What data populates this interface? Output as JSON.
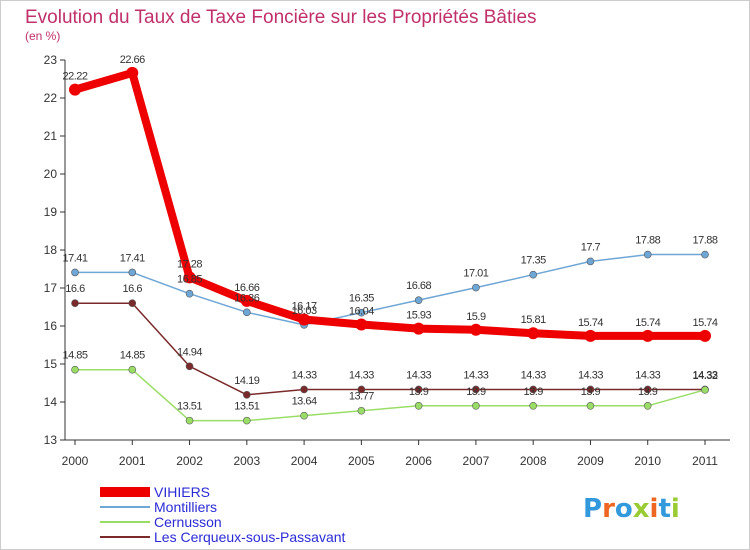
{
  "chart_data": {
    "type": "line",
    "title": "Evolution du Taux de Taxe Foncière sur les Propriétés Bâties",
    "subtitle": "(en %)",
    "xlabel": "",
    "ylabel": "",
    "categories": [
      "2000",
      "2001",
      "2002",
      "2003",
      "2004",
      "2005",
      "2006",
      "2007",
      "2008",
      "2009",
      "2010",
      "2011"
    ],
    "ylim": [
      13,
      23
    ],
    "yticks": [
      "13",
      "14",
      "15",
      "16",
      "17",
      "18",
      "19",
      "20",
      "21",
      "22",
      "23"
    ],
    "grid": false,
    "legend_position": "bottom-left",
    "series": [
      {
        "name": "VIHIERS",
        "color": "#ee0000",
        "values": [
          22.22,
          22.66,
          17.28,
          16.66,
          16.17,
          16.04,
          15.93,
          15.9,
          15.81,
          15.74,
          15.74,
          15.74
        ],
        "labels": [
          "22.22",
          "22.66",
          "17.28",
          "16.66",
          "16.17",
          "16.04",
          "15.93",
          "15.9",
          "15.81",
          "15.74",
          "15.74",
          "15.74"
        ]
      },
      {
        "name": "Montilliers",
        "color": "#6ea6d6",
        "values": [
          17.41,
          17.41,
          16.85,
          16.36,
          16.03,
          16.35,
          16.68,
          17.01,
          17.35,
          17.7,
          17.88,
          17.88
        ],
        "labels": [
          "17.41",
          "17.41",
          "16.85",
          "16.36",
          "16.03",
          "16.35",
          "16.68",
          "17.01",
          "17.35",
          "17.7",
          "17.88",
          "17.88"
        ]
      },
      {
        "name": "Cernusson",
        "color": "#99dd66",
        "values": [
          14.85,
          14.85,
          13.51,
          13.51,
          13.64,
          13.77,
          13.9,
          13.9,
          13.9,
          13.9,
          13.9,
          14.32
        ],
        "labels": [
          "14.85",
          "14.85",
          "13.51",
          "13.51",
          "13.64",
          "13.77",
          "13.9",
          "13.9",
          "13.9",
          "13.9",
          "13.9",
          "14.32"
        ]
      },
      {
        "name": "Les Cerqueux-sous-Passavant",
        "color": "#7a2a2a",
        "values": [
          16.6,
          16.6,
          14.94,
          14.19,
          14.33,
          14.33,
          14.33,
          14.33,
          14.33,
          14.33,
          14.33,
          14.33
        ],
        "labels": [
          "16.6",
          "16.6",
          "14.94",
          "14.19",
          "14.33",
          "14.33",
          "14.33",
          "14.33",
          "14.33",
          "14.33",
          "14.33",
          "14.33"
        ]
      }
    ]
  },
  "logo": {
    "text": "Proxiti",
    "colors": [
      "#3399dd",
      "#ee6622",
      "#3399dd",
      "#99cc33",
      "#ee6622",
      "#3399dd",
      "#99cc33"
    ]
  }
}
